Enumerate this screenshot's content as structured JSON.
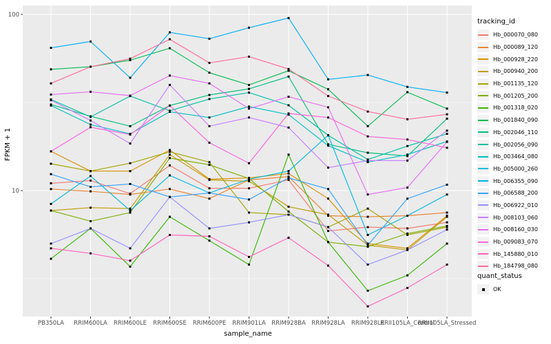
{
  "figure": {
    "background": "#FFFFFF",
    "panel_background": "#EBEBEB",
    "grid_color": "#FFFFFF",
    "tick_text_color": "#4D4D4D",
    "tick_mark_color": "#333333",
    "point_color": "#000000"
  },
  "legend": {
    "tracking_title": "tracking_id",
    "quant_title": "quant_status",
    "quant_items": [
      {
        "label": "OK",
        "icon": "filled-square-point"
      }
    ]
  },
  "chart_data": {
    "type": "line",
    "title": "",
    "xlabel": "sample_name",
    "ylabel": "FPKM + 1",
    "y_scale": "log10",
    "y_ticks": [
      10,
      100
    ],
    "y_minor_gridlines": [
      3.1623,
      31.6228
    ],
    "ylim": [
      1.93,
      112
    ],
    "grid": true,
    "legend_position": "right",
    "point_shape": "filled-square",
    "categories": [
      "PB350LA",
      "RRIM600LA",
      "RRIM600LE",
      "RRIM600SE",
      "RRIM600PE",
      "RRIM901LA",
      "RRIM928BA",
      "RRIM928LA",
      "RRIM928LE",
      "RRII105LA_Control",
      "RRII105LA_Stressed"
    ],
    "series": [
      {
        "name": "Hb_000070_080",
        "color": "#F8766D",
        "values": [
          11.0,
          11.4,
          9.6,
          13.9,
          10.3,
          10.3,
          11.5,
          5.9,
          6.2,
          6.1,
          6.6
        ]
      },
      {
        "name": "Hb_000089_120",
        "color": "#EA8331",
        "values": [
          10.2,
          9.9,
          9.5,
          10.2,
          9.0,
          11.5,
          12.0,
          7.2,
          7.1,
          7.2,
          7.5
        ]
      },
      {
        "name": "Hb_000928_220",
        "color": "#D89000",
        "values": [
          16.7,
          12.9,
          12.9,
          17.0,
          11.6,
          11.8,
          12.5,
          9.0,
          5.0,
          4.7,
          7.2
        ]
      },
      {
        "name": "Hb_000940_200",
        "color": "#C09B00",
        "values": [
          7.7,
          8.0,
          7.9,
          16.0,
          11.5,
          11.3,
          8.1,
          7.3,
          4.9,
          4.6,
          7.1
        ]
      },
      {
        "name": "Hb_001135_120",
        "color": "#A3A500",
        "values": [
          14.2,
          12.9,
          14.3,
          16.6,
          14.5,
          7.5,
          7.3,
          6.2,
          7.9,
          5.6,
          6.2
        ]
      },
      {
        "name": "Hb_001205_200",
        "color": "#7CAE00",
        "values": [
          7.7,
          6.7,
          7.5,
          15.3,
          14.0,
          11.7,
          7.6,
          5.1,
          4.8,
          5.7,
          6.3
        ]
      },
      {
        "name": "Hb_001318_020",
        "color": "#39B600",
        "values": [
          4.1,
          6.1,
          3.7,
          7.1,
          5.2,
          3.8,
          16.0,
          5.1,
          2.7,
          3.3,
          5.0
        ]
      },
      {
        "name": "Hb_001840_090",
        "color": "#00BB4E",
        "values": [
          48.8,
          50.5,
          55.0,
          64.3,
          46.7,
          39.8,
          47.9,
          37.6,
          23.2,
          36.2,
          29.2
        ]
      },
      {
        "name": "Hb_002046_110",
        "color": "#00BF7D",
        "values": [
          30.8,
          26.4,
          23.2,
          30.4,
          34.9,
          37.8,
          44.4,
          18.3,
          16.4,
          15.7,
          25.6
        ]
      },
      {
        "name": "Hb_002056_090",
        "color": "#00C1A3",
        "values": [
          32.9,
          26.2,
          34.4,
          28.4,
          33.1,
          36.0,
          30.5,
          20.6,
          15.0,
          17.9,
          21.0
        ]
      },
      {
        "name": "Hb_003464_080",
        "color": "#00BFC4",
        "values": [
          30.4,
          23.7,
          21.0,
          28.0,
          26.0,
          30.0,
          27.0,
          18.0,
          14.5,
          16.0,
          19.0
        ]
      },
      {
        "name": "Hb_005000_260",
        "color": "#00BAE0",
        "values": [
          8.4,
          12.1,
          7.7,
          12.2,
          9.7,
          11.6,
          12.9,
          20.6,
          5.6,
          7.2,
          9.5
        ]
      },
      {
        "name": "Hb_006355_090",
        "color": "#00B0F6",
        "values": [
          64.6,
          70.2,
          43.7,
          79.1,
          72.8,
          84.1,
          95.4,
          42.8,
          45.3,
          38.8,
          36.0
        ]
      },
      {
        "name": "Hb_006588_200",
        "color": "#35A2FF",
        "values": [
          12.4,
          10.5,
          10.9,
          9.2,
          9.7,
          8.9,
          11.8,
          10.2,
          4.9,
          9.0,
          10.8
        ]
      },
      {
        "name": "Hb_006922_010",
        "color": "#9590FF",
        "values": [
          5.0,
          6.1,
          4.7,
          9.2,
          6.1,
          6.6,
          7.3,
          6.2,
          3.8,
          4.6,
          6.0
        ]
      },
      {
        "name": "Hb_008103_060",
        "color": "#C77CFF",
        "values": [
          32.6,
          25.0,
          18.5,
          39.8,
          23.2,
          26.0,
          22.8,
          13.5,
          14.8,
          14.8,
          21.9
        ]
      },
      {
        "name": "Hb_008160_030",
        "color": "#E76BF3",
        "values": [
          35.1,
          36.4,
          34.6,
          45.0,
          40.6,
          29.2,
          34.1,
          29.7,
          9.5,
          10.4,
          18.9
        ]
      },
      {
        "name": "Hb_009083_070",
        "color": "#FA62DB",
        "values": [
          16.7,
          22.9,
          20.8,
          30.4,
          18.7,
          14.3,
          27.4,
          26.0,
          20.3,
          19.5,
          17.5
        ]
      },
      {
        "name": "Hb_145880_010",
        "color": "#FF62BC",
        "values": [
          4.7,
          4.4,
          4.0,
          5.6,
          5.5,
          4.2,
          5.4,
          3.75,
          2.2,
          2.8,
          3.8
        ]
      },
      {
        "name": "Hb_184798_080",
        "color": "#FF6A98",
        "values": [
          40.6,
          50.5,
          56.1,
          72.3,
          53.1,
          57.6,
          49.0,
          34.4,
          28.1,
          25.4,
          27.1
        ]
      }
    ]
  }
}
